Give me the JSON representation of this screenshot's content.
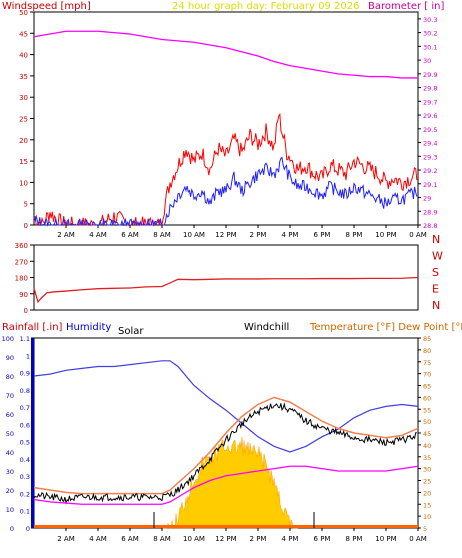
{
  "header": {
    "left_label": "Windspeed [mph]",
    "center_label": "24 hour graph day:  February 09 2026",
    "right_label": "Barometer [ in]"
  },
  "x_ticks": [
    "2 AM",
    "4 AM",
    "6 AM",
    "8 AM",
    "10 AM",
    "12 PM",
    "2 PM",
    "4 PM",
    "6 PM",
    "8 PM",
    "10 PM",
    "0 AM"
  ],
  "colors": {
    "wind_avg": "#2020ff",
    "wind_gust": "#ff0000",
    "barometer": "#ff00ff",
    "direction": "#e02020",
    "humidity": "#4040dd",
    "temperature": "#f08050",
    "dewpoint": "#ff00ff",
    "windchill": "#000000",
    "solar": "#ffcc00",
    "rain": "#ff6600",
    "axis": "#000000",
    "bottom_left_axis": "#0000cc",
    "bottom_right_axis": "#cc6600"
  },
  "chart_data": [
    {
      "type": "line",
      "title": "24 hour graph day:  February 09 2026",
      "ylabel": "Windspeed [mph]",
      "y2label": "Barometer [ in]",
      "x_hours": [
        0,
        24
      ],
      "ylim": [
        0,
        50
      ],
      "y2lim": [
        28.8,
        30.35
      ],
      "yticks": [
        0,
        5,
        10,
        15,
        20,
        25,
        30,
        35,
        40,
        45,
        50
      ],
      "y2ticks": [
        "28.8",
        "28.9",
        "29",
        "29.1",
        "29.2",
        "29.3",
        "29.4",
        "29.5",
        "29.6",
        "29.7",
        "29.8",
        "29.9",
        "30",
        "30.1",
        "30.2",
        "30.3"
      ],
      "series": [
        {
          "key": "wind_gust",
          "x": [
            0,
            0.5,
            1,
            1.5,
            2,
            3,
            4,
            5,
            6,
            7,
            7.9,
            8.0,
            8.5,
            9,
            9.5,
            10,
            10.5,
            11,
            11.5,
            12,
            12.5,
            13,
            13.5,
            14,
            14.5,
            15,
            15.3,
            15.5,
            15.8,
            16,
            16.5,
            17,
            17.5,
            18,
            18.5,
            19,
            19.5,
            20,
            20.5,
            21,
            21.5,
            22,
            22.5,
            23,
            23.5,
            24
          ],
          "y": [
            2,
            0,
            3,
            1,
            0,
            0,
            0,
            2,
            0,
            0,
            0,
            2,
            10,
            14,
            18,
            15,
            17,
            13,
            18,
            16,
            20,
            17,
            21,
            19,
            22,
            18,
            26,
            22,
            17,
            16,
            13,
            14,
            12,
            11,
            14,
            13,
            12,
            15,
            14,
            13,
            12,
            10,
            11,
            10,
            11,
            12
          ]
        },
        {
          "key": "wind_avg",
          "x": [
            0,
            1,
            2,
            3,
            4,
            5,
            6,
            7,
            7.9,
            8.0,
            8.5,
            9,
            9.5,
            10,
            10.5,
            11,
            11.5,
            12,
            12.5,
            13,
            13.5,
            14,
            14.5,
            15,
            15.5,
            16,
            16.5,
            17,
            17.5,
            18,
            18.5,
            19,
            19.5,
            20,
            20.5,
            21,
            21.5,
            22,
            22.5,
            23,
            23.5,
            24
          ],
          "y": [
            1,
            0,
            0,
            0,
            0,
            0,
            0,
            0,
            0,
            0,
            4,
            7,
            9,
            7,
            8,
            5,
            8,
            8,
            11,
            8,
            10,
            12,
            13,
            12,
            15,
            11,
            9,
            9,
            8,
            7,
            9,
            8,
            7,
            9,
            8,
            7,
            6,
            5,
            6,
            6,
            7,
            8
          ]
        },
        {
          "key": "barometer",
          "x": [
            0,
            1,
            2,
            3,
            4,
            5,
            6,
            7,
            8,
            9,
            10,
            11,
            12,
            13,
            14,
            15,
            16,
            17,
            18,
            19,
            20,
            21,
            22,
            23,
            24
          ],
          "y": [
            30.17,
            30.19,
            30.21,
            30.21,
            30.21,
            30.2,
            30.19,
            30.17,
            30.15,
            30.14,
            30.13,
            30.11,
            30.09,
            30.06,
            30.03,
            29.99,
            29.96,
            29.94,
            29.92,
            29.9,
            29.89,
            29.88,
            29.88,
            29.87,
            29.87
          ]
        }
      ]
    },
    {
      "type": "line",
      "ylabel": "Wind direction",
      "x_hours": [
        0,
        24
      ],
      "ylim": [
        0,
        360
      ],
      "yticks": [
        0,
        90,
        180,
        270,
        360
      ],
      "compass": [
        "N",
        "W",
        "S",
        "E",
        "N"
      ],
      "series": [
        {
          "key": "direction",
          "x": [
            0,
            0.25,
            0.5,
            0.8,
            1.2,
            2,
            3,
            4,
            5,
            6,
            7,
            8,
            8.5,
            9,
            10,
            11,
            12,
            13,
            14,
            15,
            16,
            17,
            18,
            19,
            20,
            21,
            22,
            23,
            24
          ],
          "y": [
            120,
            45,
            70,
            95,
            100,
            105,
            112,
            118,
            120,
            122,
            128,
            130,
            150,
            170,
            168,
            170,
            172,
            172,
            172,
            173,
            173,
            173,
            174,
            174,
            174,
            175,
            175,
            176,
            180
          ]
        }
      ]
    },
    {
      "type": "line",
      "ylabel": "Rainfall [.in]  Humidity  Solar  Windchill",
      "y2label": "Temperature [°F] Dew Point [°F]",
      "x_hours": [
        0,
        24
      ],
      "rain_ylim": [
        0,
        1.1
      ],
      "rain_ticks": [
        "0",
        "0.1",
        "0.2",
        "0.3",
        "0.4",
        "0.5",
        "0.6",
        "0.7",
        "0.8",
        "0.9",
        "1",
        "1.1"
      ],
      "hum_ylim": [
        0,
        100
      ],
      "hum_ticks": [
        0,
        10,
        20,
        30,
        40,
        50,
        60,
        70,
        80,
        90,
        100
      ],
      "temp_ylim": [
        5,
        85
      ],
      "temp_ticks": [
        5,
        10,
        15,
        20,
        25,
        30,
        35,
        40,
        45,
        50,
        55,
        60,
        65,
        70,
        75,
        80,
        85
      ],
      "labels": {
        "rain": "Rainfall [.in]",
        "humidity": "Humidity",
        "solar": "Solar",
        "windchill": "Windchill",
        "temp": "Temperature [°F] Dew Point [°F]"
      },
      "series": [
        {
          "key": "humidity",
          "x": [
            0,
            1,
            2,
            3,
            4,
            5,
            6,
            7,
            8,
            8.5,
            9,
            10,
            11,
            12,
            13,
            14,
            15,
            16,
            17,
            18,
            19,
            20,
            21,
            22,
            23,
            24
          ],
          "y": [
            80,
            81,
            83,
            84,
            85,
            85,
            86,
            87,
            88,
            88,
            85,
            75,
            68,
            62,
            55,
            48,
            43,
            40,
            43,
            48,
            52,
            58,
            62,
            64,
            65,
            64
          ]
        },
        {
          "key": "temperature",
          "x": [
            0,
            1,
            2,
            3,
            4,
            5,
            6,
            7,
            8,
            8.5,
            9,
            10,
            11,
            12,
            13,
            14,
            15,
            16,
            17,
            18,
            19,
            20,
            21,
            22,
            23,
            24
          ],
          "y": [
            22,
            21,
            20,
            19.5,
            19.5,
            19.5,
            19.5,
            19.5,
            19.5,
            21,
            24,
            30,
            37,
            45,
            52,
            57,
            60,
            58,
            54,
            50,
            47,
            45,
            44,
            43,
            44,
            47
          ]
        },
        {
          "key": "windchill",
          "x": [
            0,
            1,
            2,
            3,
            4,
            5,
            6,
            7,
            8,
            8.5,
            9,
            10,
            11,
            12,
            13,
            14,
            15,
            16,
            17,
            18,
            19,
            20,
            21,
            22,
            23,
            24
          ],
          "y": [
            19,
            18,
            17,
            18,
            18,
            18,
            18,
            18,
            18,
            19,
            21,
            27,
            34,
            42,
            49,
            54,
            57,
            55,
            50,
            47,
            45,
            43,
            42,
            41,
            42,
            44
          ]
        },
        {
          "key": "dewpoint",
          "x": [
            0,
            1,
            2,
            3,
            4,
            5,
            6,
            7,
            8,
            8.5,
            9,
            10,
            11,
            12,
            13,
            14,
            15,
            16,
            17,
            18,
            19,
            20,
            21,
            22,
            23,
            24
          ],
          "y": [
            17,
            16,
            15.5,
            15,
            15,
            15,
            15,
            15,
            15,
            16,
            18,
            22,
            25,
            27,
            28,
            29,
            30,
            31,
            31,
            30,
            29,
            29,
            29,
            29,
            30,
            31
          ]
        },
        {
          "key": "solar",
          "x": [
            8,
            8.5,
            9,
            9.5,
            10,
            10.5,
            11,
            11.5,
            12,
            12.5,
            13,
            13.5,
            14,
            14.5,
            15,
            15.5,
            16,
            16.5
          ],
          "y": [
            0,
            2,
            6,
            12,
            18,
            22,
            24,
            26,
            28,
            27,
            28,
            26,
            25,
            22,
            17,
            10,
            4,
            0
          ]
        },
        {
          "key": "rain",
          "x": [
            0,
            24
          ],
          "y": [
            0.01,
            0.01
          ]
        }
      ]
    }
  ]
}
